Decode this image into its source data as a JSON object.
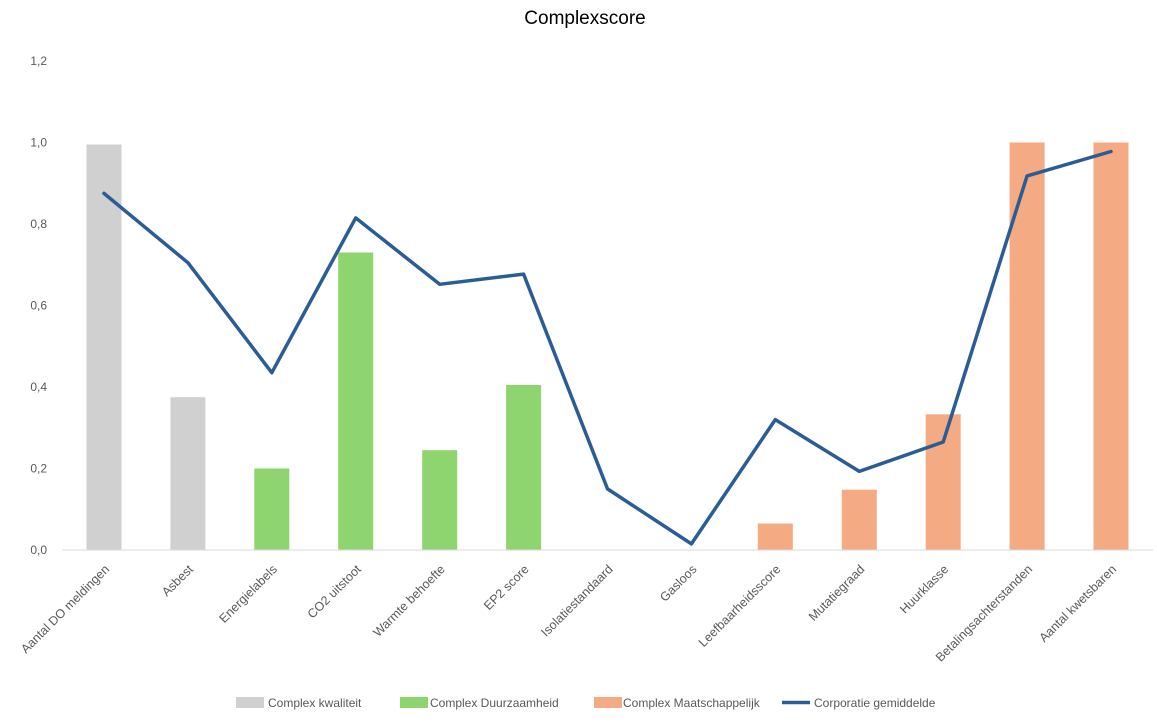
{
  "chart_data": {
    "type": "bar",
    "title": "Complexscore",
    "categories": [
      "Aantal DO meldingen",
      "Asbest",
      "Energielabels",
      "CO2 uitstoot",
      "Warmte behoefte",
      "EP2 score",
      "Isolatiestandaard",
      "Gasloos",
      "Leefbaarheidsscore",
      "Mutatiegraad",
      "Huurklasse",
      "Betalingsachterstanden",
      "Aantal kwetsbaren"
    ],
    "series": [
      {
        "name": "Complex kwaliteit",
        "kind": "bar",
        "color": "#d0d0d0",
        "values": [
          0.995,
          0.375,
          null,
          null,
          null,
          null,
          null,
          null,
          null,
          null,
          null,
          null,
          null
        ]
      },
      {
        "name": "Complex Duurzaamheid",
        "kind": "bar",
        "color": "#8fd56f",
        "values": [
          null,
          null,
          0.2,
          0.73,
          0.245,
          0.405,
          null,
          null,
          null,
          null,
          null,
          null,
          null
        ]
      },
      {
        "name": "Complex Maatschappelijk",
        "kind": "bar",
        "color": "#f4aa82",
        "values": [
          null,
          null,
          null,
          null,
          null,
          null,
          null,
          null,
          0.065,
          0.148,
          0.333,
          1.0,
          1.0
        ]
      },
      {
        "name": "Corporatie gemiddelde",
        "kind": "line",
        "color": "#2a5c96",
        "values": [
          0.875,
          0.705,
          0.435,
          0.815,
          0.652,
          0.677,
          0.15,
          0.015,
          0.32,
          0.193,
          0.265,
          0.918,
          0.978
        ]
      }
    ],
    "yticks": [
      "0,0",
      "0,2",
      "0,4",
      "0,6",
      "0,8",
      "1,0",
      "1,2"
    ],
    "ylim": [
      0,
      1.2
    ],
    "grid": false,
    "legend_position": "bottom",
    "axis_color": "#d9d9d9"
  }
}
